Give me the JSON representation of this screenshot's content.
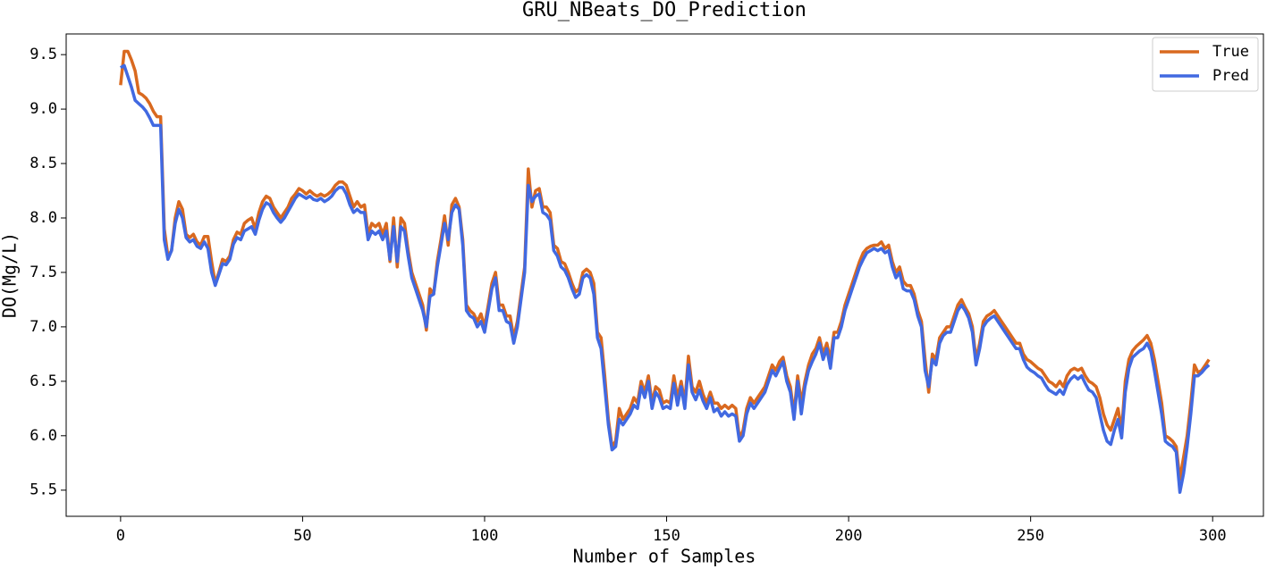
{
  "chart_data": {
    "type": "line",
    "title": "GRU_NBeats_DO_Prediction",
    "x_label": "Number of Samples",
    "y_label": "DO(Mg/L)",
    "x": [
      0,
      1,
      2,
      3,
      4,
      5,
      6,
      7,
      8,
      9,
      10,
      11,
      12,
      13,
      14,
      15,
      16,
      17,
      18,
      19,
      20,
      21,
      22,
      23,
      24,
      25,
      26,
      27,
      28,
      29,
      30,
      31,
      32,
      33,
      34,
      35,
      36,
      37,
      38,
      39,
      40,
      41,
      42,
      43,
      44,
      45,
      46,
      47,
      48,
      49,
      50,
      51,
      52,
      53,
      54,
      55,
      56,
      57,
      58,
      59,
      60,
      61,
      62,
      63,
      64,
      65,
      66,
      67,
      68,
      69,
      70,
      71,
      72,
      73,
      74,
      75,
      76,
      77,
      78,
      79,
      80,
      81,
      82,
      83,
      84,
      85,
      86,
      87,
      88,
      89,
      90,
      91,
      92,
      93,
      94,
      95,
      96,
      97,
      98,
      99,
      100,
      101,
      102,
      103,
      104,
      105,
      106,
      107,
      108,
      109,
      110,
      111,
      112,
      113,
      114,
      115,
      116,
      117,
      118,
      119,
      120,
      121,
      122,
      123,
      124,
      125,
      126,
      127,
      128,
      129,
      130,
      131,
      132,
      133,
      134,
      135,
      136,
      137,
      138,
      139,
      140,
      141,
      142,
      143,
      144,
      145,
      146,
      147,
      148,
      149,
      150,
      151,
      152,
      153,
      154,
      155,
      156,
      157,
      158,
      159,
      160,
      161,
      162,
      163,
      164,
      165,
      166,
      167,
      168,
      169,
      170,
      171,
      172,
      173,
      174,
      175,
      176,
      177,
      178,
      179,
      180,
      181,
      182,
      183,
      184,
      185,
      186,
      187,
      188,
      189,
      190,
      191,
      192,
      193,
      194,
      195,
      196,
      197,
      198,
      199,
      200,
      201,
      202,
      203,
      204,
      205,
      206,
      207,
      208,
      209,
      210,
      211,
      212,
      213,
      214,
      215,
      216,
      217,
      218,
      219,
      220,
      221,
      222,
      223,
      224,
      225,
      226,
      227,
      228,
      229,
      230,
      231,
      232,
      233,
      234,
      235,
      236,
      237,
      238,
      239,
      240,
      241,
      242,
      243,
      244,
      245,
      246,
      247,
      248,
      249,
      250,
      251,
      252,
      253,
      254,
      255,
      256,
      257,
      258,
      259,
      260,
      261,
      262,
      263,
      264,
      265,
      266,
      267,
      268,
      269,
      270,
      271,
      272,
      273,
      274,
      275,
      276,
      277,
      278,
      279,
      280,
      281,
      282,
      283,
      284,
      285,
      286,
      287,
      288,
      289,
      290,
      291,
      292,
      293,
      294,
      295,
      296,
      297,
      298,
      299
    ],
    "series": [
      {
        "name": "True",
        "color": "#d9691f",
        "values": [
          9.22,
          9.53,
          9.53,
          9.45,
          9.35,
          9.15,
          9.13,
          9.1,
          9.05,
          8.98,
          8.93,
          8.93,
          7.9,
          7.65,
          7.7,
          8.0,
          8.15,
          8.08,
          7.85,
          7.82,
          7.85,
          7.78,
          7.75,
          7.83,
          7.83,
          7.6,
          7.4,
          7.5,
          7.62,
          7.6,
          7.65,
          7.8,
          7.87,
          7.85,
          7.95,
          7.98,
          8.0,
          7.9,
          8.05,
          8.15,
          8.2,
          8.18,
          8.1,
          8.05,
          8.0,
          8.05,
          8.1,
          8.18,
          8.22,
          8.27,
          8.25,
          8.22,
          8.25,
          8.22,
          8.2,
          8.22,
          8.2,
          8.22,
          8.25,
          8.3,
          8.33,
          8.33,
          8.3,
          8.2,
          8.1,
          8.15,
          8.1,
          8.12,
          7.85,
          7.95,
          7.92,
          7.95,
          7.85,
          7.95,
          7.6,
          8.0,
          7.55,
          8.0,
          7.95,
          7.7,
          7.5,
          7.4,
          7.3,
          7.2,
          6.97,
          7.35,
          7.3,
          7.6,
          7.8,
          8.02,
          7.75,
          8.12,
          8.18,
          8.1,
          7.8,
          7.2,
          7.15,
          7.12,
          7.05,
          7.12,
          7.0,
          7.2,
          7.4,
          7.5,
          7.2,
          7.2,
          7.1,
          7.1,
          6.9,
          7.05,
          7.3,
          7.55,
          8.45,
          8.1,
          8.25,
          8.27,
          8.1,
          8.1,
          8.05,
          7.75,
          7.72,
          7.6,
          7.58,
          7.5,
          7.4,
          7.32,
          7.35,
          7.5,
          7.53,
          7.5,
          7.4,
          6.95,
          6.9,
          6.55,
          6.15,
          5.9,
          5.95,
          6.25,
          6.15,
          6.2,
          6.25,
          6.35,
          6.3,
          6.5,
          6.4,
          6.55,
          6.3,
          6.45,
          6.42,
          6.3,
          6.32,
          6.3,
          6.55,
          6.35,
          6.5,
          6.3,
          6.73,
          6.45,
          6.4,
          6.5,
          6.38,
          6.3,
          6.4,
          6.3,
          6.3,
          6.25,
          6.28,
          6.25,
          6.28,
          6.25,
          5.98,
          6.05,
          6.25,
          6.35,
          6.3,
          6.35,
          6.4,
          6.45,
          6.55,
          6.65,
          6.6,
          6.68,
          6.72,
          6.55,
          6.45,
          6.2,
          6.55,
          6.3,
          6.5,
          6.65,
          6.75,
          6.8,
          6.9,
          6.75,
          6.85,
          6.7,
          6.95,
          6.95,
          7.05,
          7.2,
          7.3,
          7.4,
          7.5,
          7.6,
          7.68,
          7.72,
          7.74,
          7.75,
          7.75,
          7.78,
          7.72,
          7.75,
          7.6,
          7.5,
          7.55,
          7.42,
          7.38,
          7.38,
          7.3,
          7.15,
          7.05,
          6.7,
          6.4,
          6.75,
          6.7,
          6.9,
          6.95,
          7.0,
          7.0,
          7.1,
          7.2,
          7.25,
          7.18,
          7.12,
          7.0,
          6.7,
          6.85,
          7.05,
          7.1,
          7.12,
          7.15,
          7.1,
          7.05,
          7.0,
          6.95,
          6.9,
          6.85,
          6.85,
          6.75,
          6.7,
          6.68,
          6.65,
          6.62,
          6.6,
          6.55,
          6.5,
          6.48,
          6.45,
          6.5,
          6.45,
          6.55,
          6.6,
          6.62,
          6.6,
          6.62,
          6.55,
          6.5,
          6.48,
          6.45,
          6.35,
          6.2,
          6.1,
          6.05,
          6.15,
          6.25,
          6.05,
          6.5,
          6.7,
          6.78,
          6.82,
          6.85,
          6.88,
          6.92,
          6.85,
          6.7,
          6.5,
          6.3,
          6.0,
          5.98,
          5.95,
          5.9,
          5.6,
          5.8,
          6.0,
          6.3,
          6.65,
          6.58,
          6.6,
          6.65,
          6.7
        ]
      },
      {
        "name": "Pred",
        "color": "#4169e1",
        "values": [
          9.38,
          9.4,
          9.3,
          9.2,
          9.08,
          9.05,
          9.02,
          8.98,
          8.92,
          8.85,
          8.85,
          8.85,
          7.8,
          7.62,
          7.7,
          7.95,
          8.08,
          8.0,
          7.82,
          7.78,
          7.8,
          7.74,
          7.72,
          7.78,
          7.72,
          7.5,
          7.38,
          7.48,
          7.58,
          7.57,
          7.62,
          7.76,
          7.82,
          7.8,
          7.88,
          7.9,
          7.92,
          7.85,
          7.98,
          8.08,
          8.14,
          8.12,
          8.05,
          8.0,
          7.96,
          8.0,
          8.06,
          8.12,
          8.18,
          8.22,
          8.2,
          8.18,
          8.2,
          8.17,
          8.16,
          8.18,
          8.15,
          8.17,
          8.2,
          8.25,
          8.28,
          8.28,
          8.22,
          8.12,
          8.05,
          8.08,
          8.05,
          8.05,
          7.8,
          7.88,
          7.85,
          7.88,
          7.8,
          7.88,
          7.62,
          7.92,
          7.6,
          7.92,
          7.88,
          7.65,
          7.45,
          7.35,
          7.25,
          7.15,
          7.0,
          7.28,
          7.3,
          7.55,
          7.75,
          7.95,
          7.8,
          8.05,
          8.12,
          8.08,
          7.75,
          7.15,
          7.1,
          7.08,
          7.0,
          7.05,
          6.95,
          7.15,
          7.35,
          7.45,
          7.15,
          7.15,
          7.05,
          7.03,
          6.85,
          7.0,
          7.25,
          7.5,
          8.3,
          8.15,
          8.2,
          8.22,
          8.05,
          8.03,
          7.98,
          7.7,
          7.65,
          7.55,
          7.52,
          7.45,
          7.35,
          7.27,
          7.3,
          7.45,
          7.48,
          7.45,
          7.3,
          6.9,
          6.8,
          6.45,
          6.1,
          5.87,
          5.9,
          6.15,
          6.1,
          6.15,
          6.2,
          6.28,
          6.25,
          6.45,
          6.35,
          6.5,
          6.25,
          6.4,
          6.35,
          6.25,
          6.27,
          6.25,
          6.48,
          6.28,
          6.45,
          6.25,
          6.65,
          6.4,
          6.33,
          6.42,
          6.32,
          6.25,
          6.35,
          6.22,
          6.25,
          6.18,
          6.22,
          6.18,
          6.2,
          6.18,
          5.95,
          6.0,
          6.2,
          6.3,
          6.25,
          6.3,
          6.35,
          6.4,
          6.5,
          6.6,
          6.55,
          6.62,
          6.68,
          6.5,
          6.4,
          6.15,
          6.5,
          6.2,
          6.45,
          6.6,
          6.68,
          6.75,
          6.85,
          6.7,
          6.8,
          6.62,
          6.9,
          6.9,
          7.0,
          7.15,
          7.25,
          7.35,
          7.45,
          7.55,
          7.62,
          7.68,
          7.7,
          7.72,
          7.7,
          7.72,
          7.68,
          7.7,
          7.55,
          7.45,
          7.5,
          7.35,
          7.33,
          7.33,
          7.25,
          7.1,
          7.0,
          6.6,
          6.45,
          6.7,
          6.65,
          6.85,
          6.92,
          6.95,
          6.95,
          7.05,
          7.15,
          7.2,
          7.15,
          7.08,
          6.95,
          6.65,
          6.8,
          7.0,
          7.05,
          7.08,
          7.1,
          7.05,
          7.0,
          6.95,
          6.9,
          6.85,
          6.8,
          6.8,
          6.7,
          6.63,
          6.6,
          6.58,
          6.55,
          6.53,
          6.47,
          6.42,
          6.4,
          6.38,
          6.42,
          6.38,
          6.47,
          6.52,
          6.55,
          6.52,
          6.55,
          6.48,
          6.42,
          6.4,
          6.35,
          6.2,
          6.05,
          5.95,
          5.92,
          6.05,
          6.15,
          5.98,
          6.4,
          6.62,
          6.72,
          6.75,
          6.78,
          6.8,
          6.85,
          6.78,
          6.6,
          6.4,
          6.2,
          5.95,
          5.92,
          5.9,
          5.85,
          5.48,
          5.65,
          5.9,
          6.2,
          6.55,
          6.55,
          6.58,
          6.62,
          6.65
        ]
      }
    ],
    "xlim": [
      -14.95,
      313.95
    ],
    "ylim": [
      5.26,
      9.69
    ],
    "xticks": [
      0,
      50,
      100,
      150,
      200,
      250,
      300
    ],
    "yticks": [
      5.5,
      {
        "value": 6,
        "label": "6.0"
      },
      6.5,
      {
        "value": 7,
        "label": "7.0"
      },
      7.5,
      {
        "value": 8,
        "label": "8.0"
      },
      8.5,
      {
        "value": 9,
        "label": "9.0"
      },
      9.5
    ],
    "grid": false,
    "legend": "upper right"
  }
}
